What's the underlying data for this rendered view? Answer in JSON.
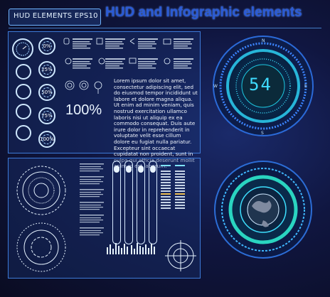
{
  "header": {
    "badge": "HUD ELEMENTS EPS10",
    "title": "HUD and Infographic elements"
  },
  "gauges": [
    {
      "label": "0%"
    },
    {
      "label": "25%"
    },
    {
      "label": "50%"
    },
    {
      "label": "75%"
    },
    {
      "label": "100%"
    }
  ],
  "big_percent": "100%",
  "lorem_text": "Lorem ipsum dolor sit amet, consectetur adipiscing elit, sed do eiusmod tempor incididunt ut labore et dolore magna aliqua. Ut enim ad minim veniam, quis nostrud exercitation ullamco laboris nisi ut aliquip ex ea commodo consequat. Duis aute irure dolor in reprehenderit in voluptate velit esse cillum dolore eu fugiat nulla pariatur. Excepteur sint occaecat cupidatat non proident, sunt in culpa qui officia deserunt mollit anim id est laborum.",
  "dial": {
    "value": "54",
    "compass": [
      "N",
      "E",
      "S",
      "W"
    ]
  },
  "colors": {
    "accent": "#3fdcff",
    "panel_border": "#3d7ad8",
    "background": "#101640"
  }
}
